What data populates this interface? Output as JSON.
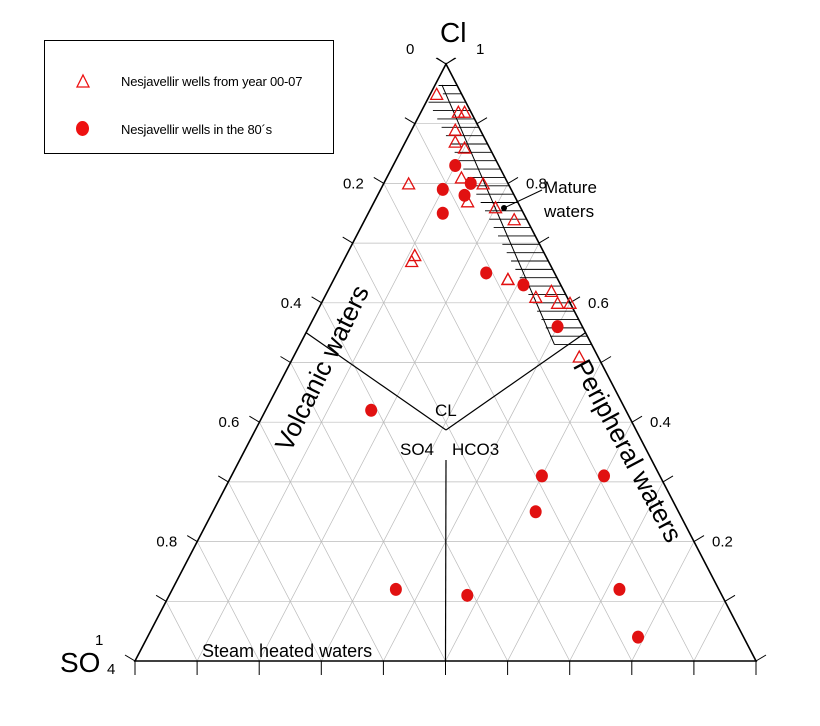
{
  "chart_data": {
    "type": "scatter",
    "subtype": "ternary",
    "vertices": {
      "top": "Cl",
      "bottom_left": "SO4",
      "bottom_right": "HCO3"
    },
    "vertex_labels": {
      "top_main": "Cl",
      "top_value": "1",
      "top_zero": "0",
      "left_main": "SO",
      "left_sub": "4",
      "left_value": "1"
    },
    "left_axis_ticks": [
      "0.2",
      "0.4",
      "0.6",
      "0.8"
    ],
    "right_axis_ticks": [
      "0.8",
      "0.6",
      "0.4",
      "0.2"
    ],
    "regions": {
      "volcanic": "Volcanic waters",
      "peripheral": "Peripheral waters",
      "steam": "Steam heated waters",
      "mature_line1": "Mature",
      "mature_line2": "waters"
    },
    "center_labels": {
      "cl": "CL",
      "so4": "SO4",
      "hco3": "HCO3"
    },
    "grid": true,
    "legend_position": "top-left",
    "series": [
      {
        "name": "Nesjavellir wells from year 00-07",
        "marker": "open-triangle",
        "color": "#e11111",
        "points": [
          [
            0.95,
            0.04,
            0.01
          ],
          [
            0.92,
            0.02,
            0.06
          ],
          [
            0.92,
            0.01,
            0.07
          ],
          [
            0.89,
            0.04,
            0.07
          ],
          [
            0.87,
            0.05,
            0.08
          ],
          [
            0.86,
            0.04,
            0.1
          ],
          [
            0.81,
            0.07,
            0.12
          ],
          [
            0.8,
            0.04,
            0.16
          ],
          [
            0.77,
            0.08,
            0.15
          ],
          [
            0.8,
            0.16,
            0.04
          ],
          [
            0.76,
            0.04,
            0.2
          ],
          [
            0.74,
            0.02,
            0.24
          ],
          [
            0.68,
            0.21,
            0.11
          ],
          [
            0.67,
            0.22,
            0.11
          ],
          [
            0.64,
            0.08,
            0.28
          ],
          [
            0.64,
            0.08,
            0.28
          ],
          [
            0.61,
            0.05,
            0.34
          ],
          [
            0.62,
            0.02,
            0.36
          ],
          [
            0.6,
            0.02,
            0.38
          ],
          [
            0.6,
            0.0,
            0.4
          ],
          [
            0.51,
            0.03,
            0.46
          ]
        ]
      },
      {
        "name": "Nesjavellir wells in the 80´s",
        "marker": "filled-circle",
        "color": "#e11111",
        "points": [
          [
            0.83,
            0.07,
            0.1
          ],
          [
            0.8,
            0.06,
            0.14
          ],
          [
            0.79,
            0.11,
            0.1
          ],
          [
            0.78,
            0.08,
            0.14
          ],
          [
            0.75,
            0.13,
            0.12
          ],
          [
            0.65,
            0.11,
            0.24
          ],
          [
            0.63,
            0.06,
            0.31
          ],
          [
            0.56,
            0.04,
            0.4
          ],
          [
            0.42,
            0.41,
            0.17
          ],
          [
            0.31,
            0.19,
            0.5
          ],
          [
            0.31,
            0.09,
            0.6
          ],
          [
            0.25,
            0.23,
            0.52
          ],
          [
            0.12,
            0.52,
            0.36
          ],
          [
            0.11,
            0.41,
            0.48
          ],
          [
            0.12,
            0.16,
            0.72
          ],
          [
            0.04,
            0.17,
            0.79
          ]
        ]
      }
    ]
  }
}
